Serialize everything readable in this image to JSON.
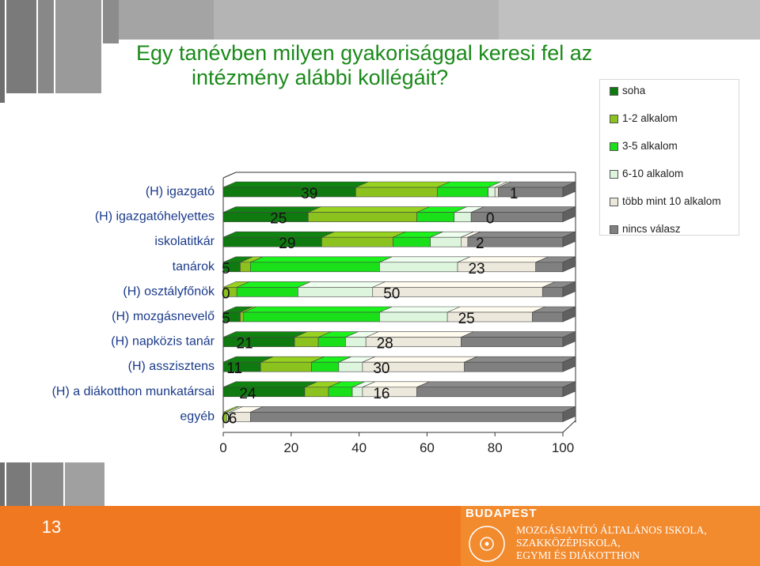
{
  "title": {
    "line1": "Egy tanévben milyen gyakorisággal keresi fel az",
    "line2": "intézmény alábbi kollégáit?"
  },
  "chart_data": {
    "type": "bar",
    "orientation": "horizontal",
    "stacked": true,
    "categories": [
      "(H) igazgató",
      "(H) igazgatóhelyettes",
      "iskolatitkár",
      "tanárok",
      "(H) osztályfőnök",
      "(H) mozgásnevelő",
      "(H) napközis tanár",
      "(H) asszisztens",
      "(H) a diákotthon munkatársai",
      "egyéb"
    ],
    "series": [
      {
        "name": "soha",
        "color": "#0f7a0f",
        "values": [
          39,
          25,
          29,
          5,
          0,
          5,
          21,
          11,
          24,
          0
        ]
      },
      {
        "name": "1-2 alkalom",
        "color": "#8cc21e",
        "values": [
          24,
          32,
          21,
          3,
          4,
          1,
          7,
          15,
          7,
          1
        ]
      },
      {
        "name": "3-5 alkalom",
        "color": "#1ae01a",
        "values": [
          15,
          11,
          11,
          38,
          18,
          40,
          8,
          8,
          7,
          0
        ]
      },
      {
        "name": "6-10 alkalom",
        "color": "#ddf5dd",
        "values": [
          2,
          5,
          9,
          23,
          22,
          20,
          6,
          7,
          3,
          1
        ]
      },
      {
        "name": "több mint 10 alkalom",
        "color": "#ece8dc",
        "values": [
          1,
          0,
          2,
          23,
          50,
          25,
          28,
          30,
          16,
          6
        ]
      },
      {
        "name": "nincs válasz",
        "color": "#808080",
        "values": [
          19,
          27,
          28,
          8,
          6,
          9,
          30,
          29,
          43,
          92
        ]
      }
    ],
    "data_labels": [
      {
        "category": "(H) igazgató",
        "left": "",
        "mid": "39",
        "right": "1"
      },
      {
        "category": "(H) igazgatóhelyettes",
        "left": "",
        "mid": "25",
        "right": "0"
      },
      {
        "category": "iskolatitkár",
        "left": "",
        "mid": "29",
        "right": "2"
      },
      {
        "category": "tanárok",
        "left": "5",
        "mid": "",
        "right": "23"
      },
      {
        "category": "(H) osztályfőnök",
        "left": "0",
        "mid": "",
        "right": "50"
      },
      {
        "category": "(H) mozgásnevelő",
        "left": "5",
        "mid": "",
        "right": "25"
      },
      {
        "category": "(H) napközis tanár",
        "left": "",
        "mid": "21",
        "right": "28"
      },
      {
        "category": "(H) asszisztens",
        "left": "",
        "mid": "11",
        "right": "30"
      },
      {
        "category": "(H) a diákotthon munkatársai",
        "left": "",
        "mid": "24",
        "right": "16"
      },
      {
        "category": "egyéb",
        "left": "0",
        "mid": "6",
        "right": ""
      }
    ],
    "xlim": [
      0,
      100
    ],
    "xticks": [
      "0",
      "20",
      "40",
      "60",
      "80",
      "100"
    ],
    "legend_position": "top-right",
    "grid": false
  },
  "legend": {
    "items": [
      {
        "label": "soha",
        "color": "#0f7a0f"
      },
      {
        "label": "1-2 alkalom",
        "color": "#8cc21e"
      },
      {
        "label": "3-5 alkalom",
        "color": "#1ae01a"
      },
      {
        "label": "6-10 alkalom",
        "color": "#ddf5dd"
      },
      {
        "label": "több mint 10 alkalom",
        "color": "#ece8dc"
      },
      {
        "label": "nincs válasz",
        "color": "#808080"
      }
    ]
  },
  "footer": {
    "page_number": "13",
    "brand": "BUDAPEST",
    "school_lines": [
      "MOZGÁSJAVÍTÓ ÁLTALÁNOS ISKOLA,",
      "SZAKKÖZÉPISKOLA,",
      "EGYMI ÉS DIÁKOTTHON"
    ],
    "seal_text": "MOZGÁSJAVÍTÓ",
    "bar_color": "#f07820"
  }
}
